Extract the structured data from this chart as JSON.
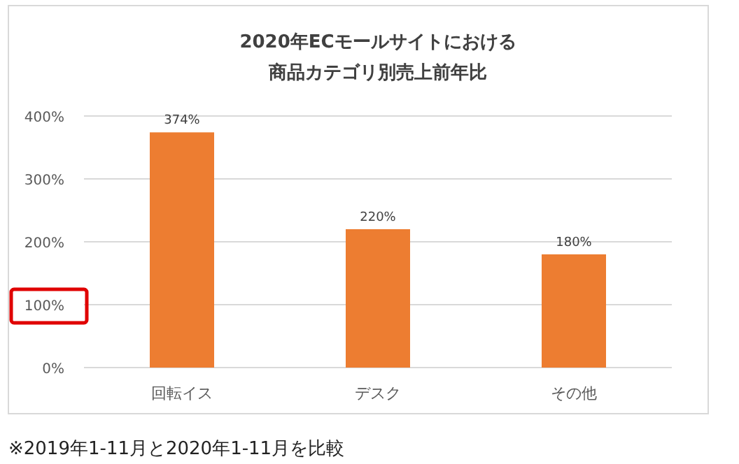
{
  "chart_data": {
    "type": "bar",
    "title": "2020年ECモールサイトにおける",
    "subtitle": "商品カテゴリ別売上前年比",
    "categories": [
      "回転イス",
      "デスク",
      "その他"
    ],
    "values": [
      374,
      220,
      180
    ],
    "color": "#ed7d31",
    "ylim": [
      0,
      400
    ],
    "yticks": [
      {
        "value": 0,
        "label": "0%"
      },
      {
        "value": 100,
        "label": "100%"
      },
      {
        "value": 200,
        "label": "200%"
      },
      {
        "value": 300,
        "label": "300%"
      },
      {
        "value": 400,
        "label": "400%"
      }
    ],
    "grid": "y",
    "data_labels": true,
    "value_labels": [
      "374%",
      "220%",
      "180%"
    ],
    "annotations": [
      "※2019年1-11月と2020年1-11月を比較"
    ]
  }
}
